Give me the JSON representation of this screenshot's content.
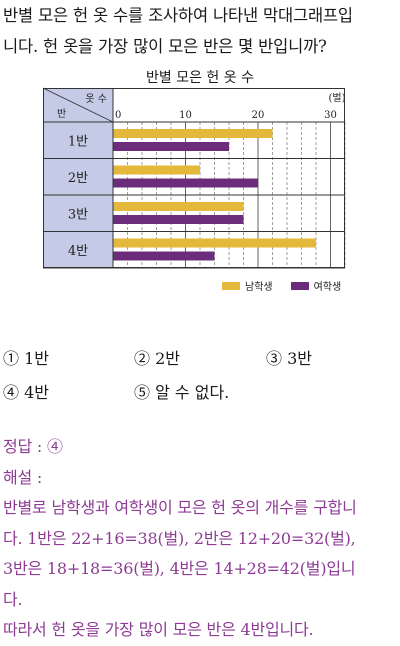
{
  "question": {
    "line1": "반별 모은 헌 옷 수를 조사하여 나타낸 막대그래프입",
    "line2": "니다. 헌 옷을 가장 많이 모은 반은 몇 반입니까?"
  },
  "chart_data": {
    "type": "bar",
    "orientation": "horizontal",
    "title": "반별 모은 헌 옷 수",
    "corner_top_label": "옷 수",
    "corner_bottom_label": "반",
    "unit_label": "(벌)",
    "categories": [
      "1반",
      "2반",
      "3반",
      "4반"
    ],
    "series": [
      {
        "name": "남학생",
        "values": [
          22,
          12,
          18,
          28
        ],
        "color": "#e3b83b"
      },
      {
        "name": "여학생",
        "values": [
          16,
          20,
          18,
          14
        ],
        "color": "#6b2c7a"
      }
    ],
    "xlim": [
      0,
      32
    ],
    "ticks": [
      0,
      10,
      20,
      30
    ],
    "grid": true
  },
  "options": [
    {
      "marker": "①",
      "text": "1반"
    },
    {
      "marker": "②",
      "text": "2반"
    },
    {
      "marker": "③",
      "text": "3반"
    },
    {
      "marker": "④",
      "text": "4반"
    },
    {
      "marker": "⑤",
      "text": "알 수 없다."
    }
  ],
  "solution": {
    "answer": "정답 : ④",
    "heading": "해설 :",
    "lines": [
      "반별로 남학생과 여학생이 모은 헌 옷의 개수를 구합니",
      "다. 1반은 22+16=38(벌), 2반은 12+20=32(벌),",
      "3반은 18+18=36(벌), 4반은 14+28=42(벌)입니",
      "다.",
      "따라서 헌 옷을 가장 많이 모은 반은 4반입니다."
    ]
  }
}
